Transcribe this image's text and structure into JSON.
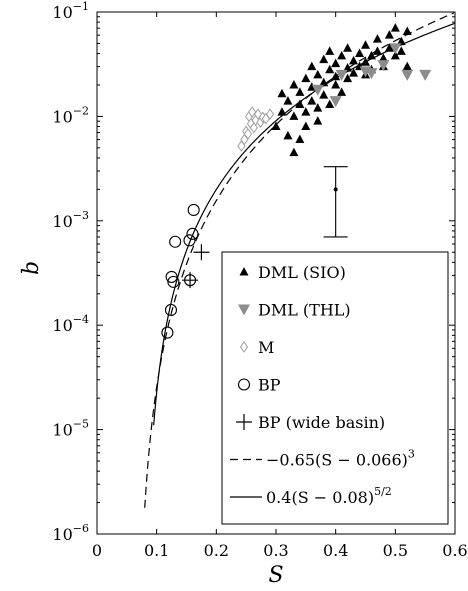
{
  "chart_data": {
    "type": "scatter",
    "xlabel": "S",
    "ylabel": "b",
    "xlim": [
      0,
      0.6
    ],
    "ylim": [
      1e-06,
      0.1
    ],
    "yscale": "log",
    "legend_placement": "bottom-right",
    "x_ticks": [
      "0",
      "0.1",
      "0.2",
      "0.3",
      "0.4",
      "0.5",
      "0.6"
    ],
    "y_ticks": [
      {
        "base": "10",
        "exp": "−6"
      },
      {
        "base": "10",
        "exp": "−5"
      },
      {
        "base": "10",
        "exp": "−4"
      },
      {
        "base": "10",
        "exp": "−3"
      },
      {
        "base": "10",
        "exp": "−2"
      },
      {
        "base": "10",
        "exp": "−1"
      }
    ],
    "series": [
      {
        "name": "DML (SIO)",
        "marker": "triangle-up-filled",
        "color": "#000000",
        "points": [
          [
            0.3,
            0.008
          ],
          [
            0.31,
            0.011
          ],
          [
            0.31,
            0.0165
          ],
          [
            0.32,
            0.0065
          ],
          [
            0.32,
            0.014
          ],
          [
            0.33,
            0.01
          ],
          [
            0.33,
            0.02
          ],
          [
            0.33,
            0.0045
          ],
          [
            0.34,
            0.013
          ],
          [
            0.34,
            0.017
          ],
          [
            0.34,
            0.006
          ],
          [
            0.35,
            0.011
          ],
          [
            0.35,
            0.023
          ],
          [
            0.35,
            0.008
          ],
          [
            0.36,
            0.014
          ],
          [
            0.36,
            0.019
          ],
          [
            0.36,
            0.03
          ],
          [
            0.37,
            0.012
          ],
          [
            0.37,
            0.025
          ],
          [
            0.37,
            0.009
          ],
          [
            0.38,
            0.016
          ],
          [
            0.38,
            0.035
          ],
          [
            0.38,
            0.021
          ],
          [
            0.39,
            0.013
          ],
          [
            0.39,
            0.028
          ],
          [
            0.39,
            0.042
          ],
          [
            0.4,
            0.02
          ],
          [
            0.4,
            0.024
          ],
          [
            0.4,
            0.032
          ],
          [
            0.41,
            0.017
          ],
          [
            0.41,
            0.038
          ],
          [
            0.42,
            0.023
          ],
          [
            0.42,
            0.029
          ],
          [
            0.42,
            0.045
          ],
          [
            0.43,
            0.026
          ],
          [
            0.43,
            0.034
          ],
          [
            0.44,
            0.03
          ],
          [
            0.44,
            0.04
          ],
          [
            0.45,
            0.025
          ],
          [
            0.45,
            0.048
          ],
          [
            0.45,
            0.033
          ],
          [
            0.46,
            0.038
          ],
          [
            0.46,
            0.028
          ],
          [
            0.47,
            0.042
          ],
          [
            0.47,
            0.055
          ],
          [
            0.48,
            0.036
          ],
          [
            0.48,
            0.03
          ],
          [
            0.49,
            0.045
          ],
          [
            0.49,
            0.06
          ],
          [
            0.5,
            0.038
          ],
          [
            0.5,
            0.07
          ],
          [
            0.51,
            0.052
          ],
          [
            0.51,
            0.042
          ],
          [
            0.52,
            0.065
          ],
          [
            0.52,
            0.03
          ]
        ]
      },
      {
        "name": "DML (THL)",
        "marker": "triangle-down-filled",
        "color": "#8c8c8c",
        "points": [
          [
            0.37,
            0.018
          ],
          [
            0.4,
            0.014
          ],
          [
            0.41,
            0.025
          ],
          [
            0.45,
            0.027
          ],
          [
            0.46,
            0.026
          ],
          [
            0.48,
            0.031
          ],
          [
            0.5,
            0.045
          ],
          [
            0.52,
            0.025
          ],
          [
            0.55,
            0.025
          ]
        ]
      },
      {
        "name": "M",
        "marker": "diamond-open",
        "color": "#a0a0a0",
        "points": [
          [
            0.242,
            0.0052
          ],
          [
            0.247,
            0.006
          ],
          [
            0.25,
            0.0072
          ],
          [
            0.253,
            0.0068
          ],
          [
            0.255,
            0.01
          ],
          [
            0.258,
            0.0085
          ],
          [
            0.26,
            0.011
          ],
          [
            0.263,
            0.0078
          ],
          [
            0.266,
            0.0092
          ],
          [
            0.27,
            0.0105
          ],
          [
            0.274,
            0.0088
          ],
          [
            0.278,
            0.0098
          ],
          [
            0.283,
            0.0095
          ],
          [
            0.29,
            0.0105
          ]
        ]
      },
      {
        "name": "BP",
        "marker": "circle-open",
        "color": "#000000",
        "points": [
          [
            0.118,
            8.5e-05
          ],
          [
            0.124,
            0.00014
          ],
          [
            0.125,
            0.00029
          ],
          [
            0.128,
            0.00026
          ],
          [
            0.131,
            0.00063
          ],
          [
            0.155,
            0.00065
          ],
          [
            0.16,
            0.00075
          ],
          [
            0.162,
            0.00127
          ],
          [
            0.156,
            0.00027
          ]
        ]
      },
      {
        "name": "BP (wide basin)",
        "marker": "plus",
        "color": "#000000",
        "points": [
          [
            0.156,
            0.00027
          ],
          [
            0.175,
            0.0005
          ]
        ]
      }
    ],
    "curves": [
      {
        "name": "−0.65(S − 0.066)",
        "sup": "3",
        "formula": "0.65*(S-0.066)^3",
        "style": "dashed",
        "x_start": 0.08
      },
      {
        "name": "0.4(S − 0.08)",
        "sup": "5/2",
        "formula": "0.4*(S-0.08)^(5/2)",
        "style": "solid",
        "x_start": 0.095
      }
    ],
    "error_bar": {
      "x": 0.4,
      "y": 0.002,
      "y_low": 0.0007,
      "y_high": 0.0033
    }
  }
}
